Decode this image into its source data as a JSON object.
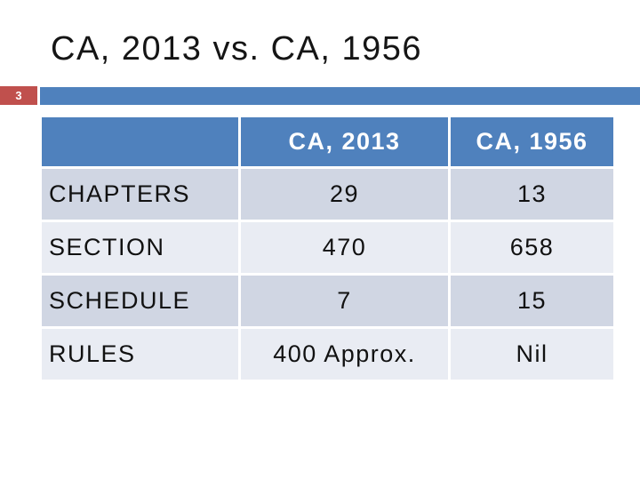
{
  "slide": {
    "title": "CA, 2013 vs. CA, 1956",
    "page_number": "3"
  },
  "colors": {
    "accent_blue": "#4f81bd",
    "badge_red": "#c0504d",
    "band_dark": "#d0d6e3",
    "band_light": "#e9ecf3",
    "header_text": "#ffffff",
    "body_text": "#111111"
  },
  "table": {
    "columns": [
      "",
      "CA, 2013",
      "CA, 1956"
    ],
    "rows": [
      {
        "label": "CHAPTERS",
        "ca2013": "29",
        "ca1956": "13"
      },
      {
        "label": "SECTION",
        "ca2013": "470",
        "ca1956": "658"
      },
      {
        "label": "SCHEDULE",
        "ca2013": "7",
        "ca1956": "15"
      },
      {
        "label": "RULES",
        "ca2013": "400 Approx.",
        "ca1956": "Nil"
      }
    ]
  }
}
